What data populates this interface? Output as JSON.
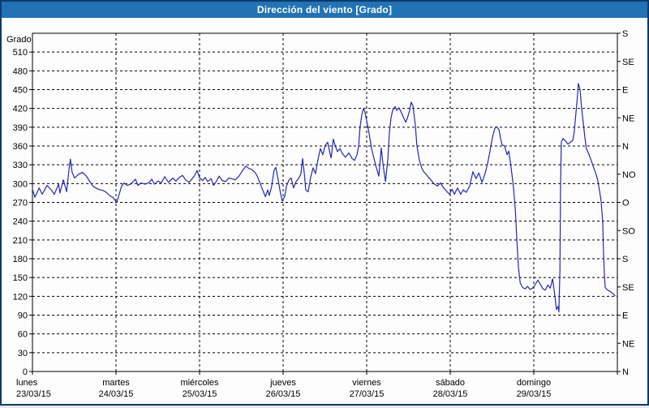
{
  "window": {
    "title": "Dirección del viento [Grado]"
  },
  "colors": {
    "titlebar": "#2173b4",
    "window_border": "#0a3a6e",
    "line": "#2626b0",
    "grid": "#000000",
    "background": "#fdfdfd"
  },
  "chart_data": {
    "type": "line",
    "title": "Dirección del viento [Grado]",
    "ylabel": "Grado",
    "ylim": [
      0,
      540
    ],
    "y_ticks": [
      0,
      30,
      60,
      90,
      120,
      150,
      180,
      210,
      240,
      270,
      300,
      330,
      360,
      390,
      420,
      450,
      480,
      510
    ],
    "right_axis_interval": 45,
    "right_axis_labels_bottom_to_top": [
      "N",
      "NE",
      "E",
      "SE",
      "S",
      "SO",
      "O",
      "NO",
      "N",
      "NE",
      "E",
      "SE",
      "S"
    ],
    "xlim_hours": [
      0,
      168
    ],
    "day_span_hours": 24,
    "x_days": [
      {
        "name": "lunes",
        "date": "23/03/15"
      },
      {
        "name": "martes",
        "date": "24/03/15"
      },
      {
        "name": "miércoles",
        "date": "25/03/15"
      },
      {
        "name": "jueves",
        "date": "26/03/15"
      },
      {
        "name": "viernes",
        "date": "27/03/15"
      },
      {
        "name": "sábado",
        "date": "28/03/15"
      },
      {
        "name": "domingo",
        "date": "29/03/15"
      }
    ],
    "grid": "dashed",
    "legend": "none",
    "series": [
      {
        "name": "Dirección del viento [Grado]",
        "points": [
          [
            0,
            291
          ],
          [
            0.7,
            278
          ],
          [
            1.9,
            293
          ],
          [
            2.8,
            283
          ],
          [
            4.2,
            297
          ],
          [
            5.4,
            290
          ],
          [
            6.3,
            283
          ],
          [
            7.5,
            299
          ],
          [
            7.9,
            285
          ],
          [
            8.9,
            306
          ],
          [
            9.8,
            287
          ],
          [
            10.5,
            323
          ],
          [
            10.9,
            339
          ],
          [
            11.4,
            318
          ],
          [
            12.1,
            309
          ],
          [
            13.3,
            315
          ],
          [
            14.4,
            318
          ],
          [
            15.6,
            311
          ],
          [
            16.5,
            303
          ],
          [
            17.5,
            295
          ],
          [
            18.9,
            291
          ],
          [
            20.3,
            289
          ],
          [
            21.2,
            286
          ],
          [
            22.1,
            281
          ],
          [
            23.1,
            278
          ],
          [
            23.8,
            273
          ],
          [
            24.2,
            270
          ],
          [
            24.9,
            283
          ],
          [
            25.6,
            296
          ],
          [
            26.3,
            301
          ],
          [
            27.3,
            297
          ],
          [
            28.2,
            299
          ],
          [
            28.9,
            303
          ],
          [
            29.6,
            307
          ],
          [
            30.3,
            297
          ],
          [
            31.2,
            301
          ],
          [
            32.4,
            299
          ],
          [
            33.6,
            302
          ],
          [
            34.3,
            307
          ],
          [
            35,
            299
          ],
          [
            36.1,
            304
          ],
          [
            37,
            301
          ],
          [
            38,
            311
          ],
          [
            39.1,
            302
          ],
          [
            40.3,
            309
          ],
          [
            41.2,
            304
          ],
          [
            42.2,
            310
          ],
          [
            43.1,
            313
          ],
          [
            44,
            306
          ],
          [
            45,
            302
          ],
          [
            45.9,
            308
          ],
          [
            46.6,
            313
          ],
          [
            47.3,
            321
          ],
          [
            48,
            309
          ],
          [
            48.9,
            305
          ],
          [
            49.6,
            310
          ],
          [
            50.3,
            303
          ],
          [
            51.3,
            308
          ],
          [
            52,
            297
          ],
          [
            52.9,
            304
          ],
          [
            53.6,
            312
          ],
          [
            54.5,
            305
          ],
          [
            55.5,
            303
          ],
          [
            56.4,
            309
          ],
          [
            57.1,
            308
          ],
          [
            58.3,
            306
          ],
          [
            59.2,
            311
          ],
          [
            59.9,
            317
          ],
          [
            60.6,
            323
          ],
          [
            61.3,
            328
          ],
          [
            62.2,
            324
          ],
          [
            62.9,
            323
          ],
          [
            63.9,
            318
          ],
          [
            64.5,
            313
          ],
          [
            65.2,
            303
          ],
          [
            65.9,
            293
          ],
          [
            66.4,
            286
          ],
          [
            66.9,
            279
          ],
          [
            67.6,
            290
          ],
          [
            68,
            281
          ],
          [
            68.7,
            295
          ],
          [
            69.4,
            321
          ],
          [
            69.9,
            326
          ],
          [
            70.6,
            305
          ],
          [
            71.3,
            283
          ],
          [
            71.8,
            272
          ],
          [
            72.5,
            280
          ],
          [
            72.9,
            295
          ],
          [
            73.6,
            305
          ],
          [
            74.3,
            309
          ],
          [
            75,
            293
          ],
          [
            75.7,
            303
          ],
          [
            76.4,
            308
          ],
          [
            77.1,
            315
          ],
          [
            77.6,
            340
          ],
          [
            78.1,
            315
          ],
          [
            78.5,
            290
          ],
          [
            79.2,
            287
          ],
          [
            79.9,
            310
          ],
          [
            80.6,
            325
          ],
          [
            81.3,
            316
          ],
          [
            82,
            338
          ],
          [
            82.7,
            356
          ],
          [
            83.4,
            346
          ],
          [
            84.1,
            361
          ],
          [
            84.8,
            366
          ],
          [
            85.3,
            352
          ],
          [
            85.8,
            341
          ],
          [
            86.4,
            371
          ],
          [
            86.9,
            362
          ],
          [
            87.6,
            351
          ],
          [
            88.3,
            356
          ],
          [
            89,
            348
          ],
          [
            89.9,
            342
          ],
          [
            90.9,
            349
          ],
          [
            91.8,
            340
          ],
          [
            92.5,
            337
          ],
          [
            93.2,
            346
          ],
          [
            93.7,
            360
          ],
          [
            94.1,
            390
          ],
          [
            94.6,
            410
          ],
          [
            95.1,
            420
          ],
          [
            95.5,
            414
          ],
          [
            96,
            400
          ],
          [
            96.7,
            380
          ],
          [
            97.4,
            356
          ],
          [
            98.1,
            340
          ],
          [
            98.8,
            325
          ],
          [
            99.5,
            312
          ],
          [
            100.2,
            357
          ],
          [
            100.7,
            330
          ],
          [
            101.4,
            303
          ],
          [
            102.1,
            340
          ],
          [
            102.5,
            380
          ],
          [
            103,
            405
          ],
          [
            103.5,
            418
          ],
          [
            104.2,
            423
          ],
          [
            104.6,
            417
          ],
          [
            105.3,
            421
          ],
          [
            106,
            413
          ],
          [
            106.7,
            404
          ],
          [
            107.2,
            398
          ],
          [
            107.6,
            403
          ],
          [
            108.3,
            416
          ],
          [
            108.8,
            430
          ],
          [
            109.3,
            424
          ],
          [
            110,
            392
          ],
          [
            110.4,
            362
          ],
          [
            111.1,
            338
          ],
          [
            111.8,
            325
          ],
          [
            112.5,
            318
          ],
          [
            113.5,
            312
          ],
          [
            114.4,
            306
          ],
          [
            115.3,
            300
          ],
          [
            116.3,
            296
          ],
          [
            117.2,
            301
          ],
          [
            118.1,
            293
          ],
          [
            119.1,
            287
          ],
          [
            119.8,
            283
          ],
          [
            120.5,
            291
          ],
          [
            121.2,
            283
          ],
          [
            122.1,
            293
          ],
          [
            123,
            283
          ],
          [
            123.7,
            290
          ],
          [
            124.6,
            286
          ],
          [
            125.6,
            296
          ],
          [
            126.5,
            319
          ],
          [
            127.4,
            308
          ],
          [
            128.2,
            317
          ],
          [
            129.1,
            302
          ],
          [
            130,
            316
          ],
          [
            130.7,
            331
          ],
          [
            131.4,
            351
          ],
          [
            132.1,
            373
          ],
          [
            132.8,
            388
          ],
          [
            133.3,
            391
          ],
          [
            134,
            386
          ],
          [
            134.5,
            371
          ],
          [
            134.9,
            362
          ],
          [
            135.6,
            360
          ],
          [
            136.3,
            346
          ],
          [
            136.8,
            352
          ],
          [
            137.3,
            334
          ],
          [
            137.7,
            315
          ],
          [
            138.2,
            292
          ],
          [
            138.7,
            257
          ],
          [
            139.1,
            212
          ],
          [
            139.6,
            166
          ],
          [
            140.1,
            141
          ],
          [
            140.8,
            134
          ],
          [
            141.5,
            132
          ],
          [
            142.2,
            136
          ],
          [
            142.9,
            131
          ],
          [
            143.6,
            133
          ],
          [
            144.2,
            137
          ],
          [
            145.2,
            146
          ],
          [
            145.9,
            139
          ],
          [
            146.6,
            132
          ],
          [
            147.3,
            130
          ],
          [
            148,
            138
          ],
          [
            148.7,
            133
          ],
          [
            149.4,
            148
          ],
          [
            150.1,
            118
          ],
          [
            150.5,
            99
          ],
          [
            151,
            104
          ],
          [
            151.2,
            95
          ],
          [
            151.5,
            160
          ],
          [
            151.7,
            300
          ],
          [
            151.9,
            366
          ],
          [
            152.4,
            372
          ],
          [
            153.1,
            368
          ],
          [
            153.8,
            363
          ],
          [
            154.5,
            366
          ],
          [
            155.2,
            369
          ],
          [
            155.6,
            382
          ],
          [
            156.1,
            412
          ],
          [
            156.6,
            444
          ],
          [
            156.8,
            460
          ],
          [
            157.3,
            449
          ],
          [
            157.7,
            422
          ],
          [
            158.2,
            398
          ],
          [
            158.7,
            372
          ],
          [
            159.1,
            356
          ],
          [
            159.8,
            347
          ],
          [
            160.5,
            337
          ],
          [
            161.2,
            325
          ],
          [
            161.9,
            315
          ],
          [
            162.4,
            304
          ],
          [
            162.8,
            291
          ],
          [
            163.3,
            274
          ],
          [
            163.8,
            238
          ],
          [
            164,
            195
          ],
          [
            164.3,
            152
          ],
          [
            164.5,
            134
          ],
          [
            165.2,
            130
          ],
          [
            165.9,
            128
          ],
          [
            166.6,
            125
          ],
          [
            167.3,
            121
          ]
        ]
      }
    ]
  }
}
